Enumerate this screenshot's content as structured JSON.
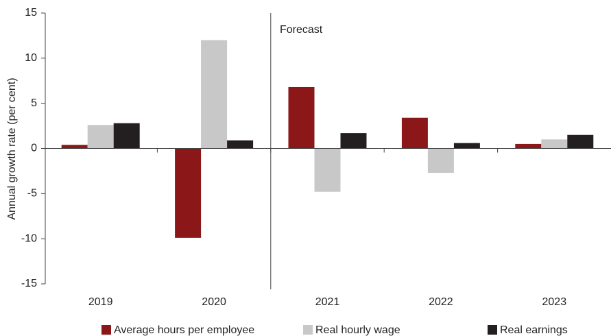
{
  "chart_data": {
    "type": "bar",
    "annotation": "Forecast",
    "y_label": "Annual growth rate (per cent)",
    "categories": [
      "2019",
      "2020",
      "2021",
      "2022",
      "2023"
    ],
    "series": [
      {
        "name": "Average hours per employee",
        "color": "#8b1718",
        "values": [
          0.4,
          -9.9,
          6.8,
          3.4,
          0.5
        ]
      },
      {
        "name": "Real hourly wage",
        "color": "#c8c8c8",
        "values": [
          2.6,
          12.0,
          -4.8,
          -2.7,
          1.0
        ]
      },
      {
        "name": "Real earnings",
        "color": "#231f20",
        "values": [
          2.8,
          0.9,
          1.7,
          0.6,
          1.5
        ]
      }
    ],
    "ylim": [
      -15,
      15
    ],
    "yticks": [
      -15,
      -10,
      -5,
      0,
      5,
      10,
      15
    ],
    "legend": "bottom"
  }
}
